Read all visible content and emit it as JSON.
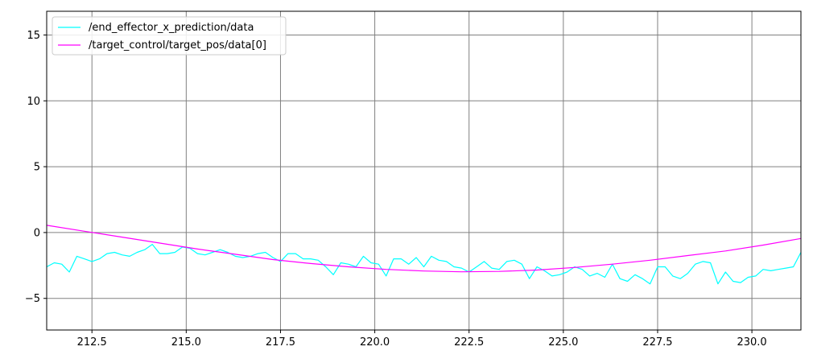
{
  "chart_data": {
    "type": "line",
    "title": "",
    "xlabel": "",
    "ylabel": "",
    "xlim": [
      211.3,
      231.3
    ],
    "ylim": [
      -7.4,
      16.8
    ],
    "grid": true,
    "legend_placement": "top-left",
    "x_ticks": [
      212.5,
      215.0,
      217.5,
      220.0,
      222.5,
      225.0,
      227.5,
      230.0
    ],
    "x_tick_labels": [
      "212.5",
      "215.0",
      "217.5",
      "220.0",
      "222.5",
      "225.0",
      "227.5",
      "230.0"
    ],
    "y_ticks": [
      -5,
      0,
      5,
      10,
      15
    ],
    "y_tick_labels": [
      "−5",
      "0",
      "5",
      "10",
      "15"
    ],
    "series": [
      {
        "name": "/end_effector_x_prediction/data",
        "color": "#00ffff",
        "x": [
          211.3,
          211.5,
          211.7,
          211.9,
          212.1,
          212.3,
          212.5,
          212.7,
          212.9,
          213.1,
          213.3,
          213.5,
          213.7,
          213.9,
          214.1,
          214.3,
          214.5,
          214.7,
          214.9,
          215.1,
          215.3,
          215.5,
          215.7,
          215.9,
          216.1,
          216.3,
          216.5,
          216.7,
          216.9,
          217.1,
          217.3,
          217.5,
          217.7,
          217.9,
          218.1,
          218.3,
          218.5,
          218.7,
          218.9,
          219.1,
          219.3,
          219.5,
          219.7,
          219.9,
          220.1,
          220.3,
          220.5,
          220.7,
          220.9,
          221.1,
          221.3,
          221.5,
          221.7,
          221.9,
          222.1,
          222.3,
          222.5,
          222.7,
          222.9,
          223.1,
          223.3,
          223.5,
          223.7,
          223.9,
          224.1,
          224.3,
          224.5,
          224.7,
          224.9,
          225.1,
          225.3,
          225.5,
          225.7,
          225.9,
          226.1,
          226.3,
          226.5,
          226.7,
          226.9,
          227.1,
          227.3,
          227.5,
          227.7,
          227.9,
          228.1,
          228.3,
          228.5,
          228.7,
          228.9,
          229.1,
          229.3,
          229.5,
          229.7,
          229.9,
          230.1,
          230.3,
          230.5,
          230.7,
          230.9,
          231.1,
          231.3
        ],
        "y": [
          -2.6,
          -2.3,
          -2.4,
          -3.0,
          -1.8,
          -2.0,
          -2.2,
          -2.0,
          -1.6,
          -1.5,
          -1.7,
          -1.8,
          -1.5,
          -1.3,
          -0.9,
          -1.6,
          -1.6,
          -1.5,
          -1.1,
          -1.2,
          -1.6,
          -1.7,
          -1.5,
          -1.3,
          -1.5,
          -1.8,
          -1.9,
          -1.8,
          -1.6,
          -1.5,
          -1.9,
          -2.2,
          -1.6,
          -1.6,
          -2.0,
          -2.0,
          -2.1,
          -2.6,
          -3.2,
          -2.3,
          -2.4,
          -2.6,
          -1.8,
          -2.3,
          -2.4,
          -3.3,
          -2.0,
          -2.0,
          -2.4,
          -1.9,
          -2.6,
          -1.8,
          -2.1,
          -2.2,
          -2.6,
          -2.7,
          -3.0,
          -2.6,
          -2.2,
          -2.7,
          -2.8,
          -2.2,
          -2.1,
          -2.4,
          -3.5,
          -2.6,
          -2.9,
          -3.3,
          -3.2,
          -3.0,
          -2.6,
          -2.8,
          -3.3,
          -3.1,
          -3.4,
          -2.4,
          -3.5,
          -3.7,
          -3.2,
          -3.5,
          -3.9,
          -2.6,
          -2.6,
          -3.3,
          -3.5,
          -3.1,
          -2.4,
          -2.2,
          -2.3,
          -3.9,
          -3.0,
          -3.7,
          -3.8,
          -3.4,
          -3.3,
          -2.8,
          -2.9,
          -2.8,
          -2.7,
          -2.6,
          -1.5
        ]
      },
      {
        "name": "/target_control/target_pos/data[0]",
        "color": "#ff00ff",
        "x": [
          211.3,
          212.3,
          213.3,
          214.3,
          215.3,
          216.3,
          217.3,
          218.3,
          219.3,
          220.3,
          221.3,
          222.3,
          223.3,
          224.3,
          225.3,
          226.3,
          227.3,
          228.3,
          229.3,
          230.3,
          231.3
        ],
        "y": [
          0.55,
          0.1,
          -0.35,
          -0.8,
          -1.25,
          -1.65,
          -2.05,
          -2.35,
          -2.6,
          -2.8,
          -2.92,
          -2.98,
          -2.95,
          -2.85,
          -2.65,
          -2.4,
          -2.1,
          -1.75,
          -1.4,
          -0.95,
          -0.45
        ]
      }
    ]
  }
}
